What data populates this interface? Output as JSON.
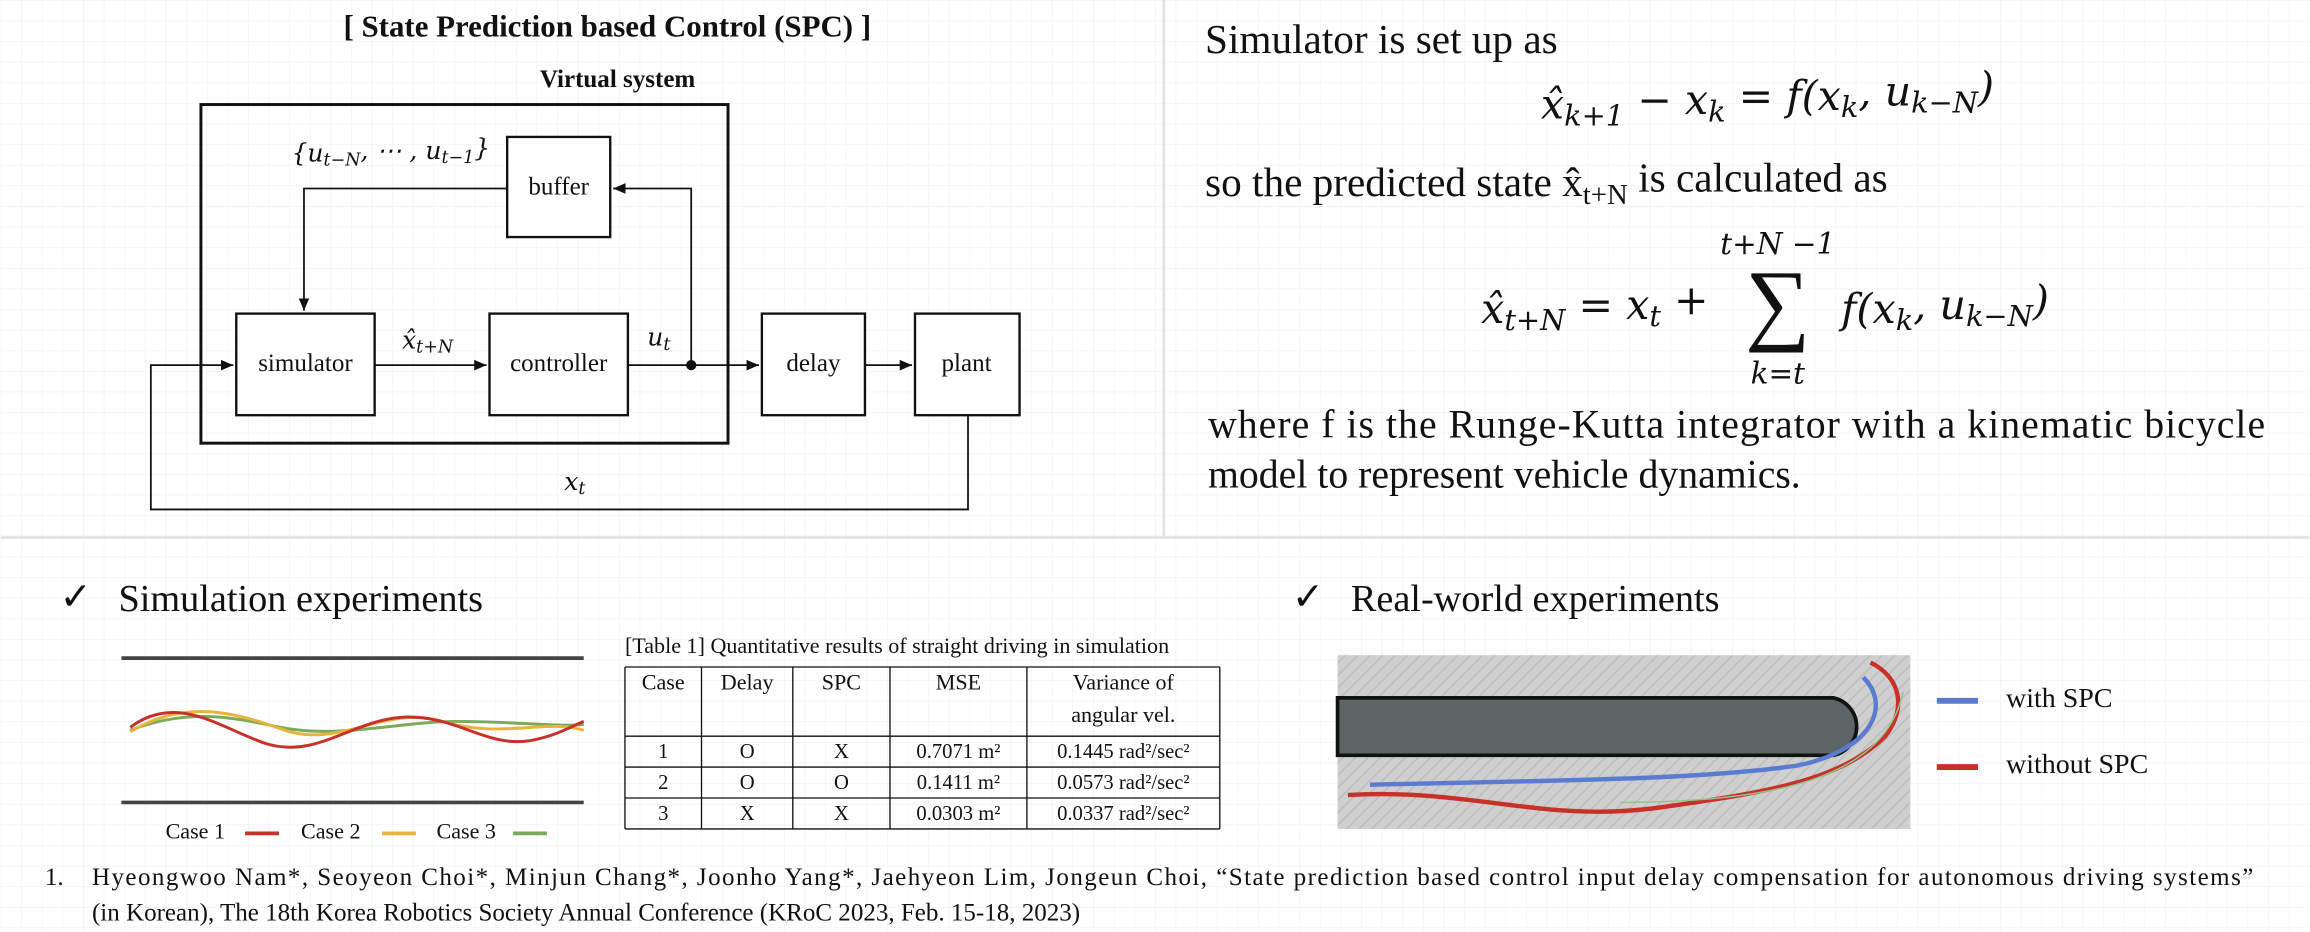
{
  "left_panel": {
    "title": "[ State Prediction based Control (SPC) ]",
    "virtual_system": "Virtual system",
    "buffer_contents": "{u_{t−N}, ⋯ , u_{t−1}}",
    "blocks": [
      "buffer",
      "simulator",
      "controller",
      "delay",
      "plant"
    ],
    "signals": [
      "x̂_{t+N}",
      "u_{t}",
      "x_{t}"
    ]
  },
  "right_panel": {
    "line1": "Simulator is set up as",
    "formula1": "x̂_{k+1} − x_{k} = f(x_{k}, u_{k−N})",
    "line2": "so the predicted state x̂_{t+N} is calculated as",
    "formula2": {
      "lhs": "x̂_{t+N} = x_{t} +",
      "sum": "∑",
      "upper": "t+N −1",
      "lower": "k=t",
      "rhs": "f(x_{k}, u_{k−N})"
    },
    "where_lines": [
      "where f is the Runge-Kutta integrator with a kinematic bicycle",
      "model to represent vehicle dynamics."
    ]
  },
  "simulation": {
    "check": "✓",
    "heading": "Simulation experiments",
    "legend": [
      "Case 1",
      "Case 2",
      "Case 3"
    ]
  },
  "table": {
    "caption": "[Table 1] Quantitative results of straight driving in simulation",
    "header": [
      "Case",
      "Delay",
      "SPC",
      "MSE",
      [
        "Variance of",
        "angular vel."
      ]
    ],
    "rows": [
      [
        "1",
        "O",
        "X",
        "0.7071 m²",
        "0.1445 rad²/sec²"
      ],
      [
        "2",
        "O",
        "O",
        "0.1411 m²",
        "0.0573 rad²/sec²"
      ],
      [
        "3",
        "X",
        "X",
        "0.0303 m²",
        "0.0337 rad²/sec²"
      ]
    ]
  },
  "real_world": {
    "check": "✓",
    "heading": "Real-world experiments",
    "legend": [
      "with SPC",
      "without SPC"
    ]
  },
  "footnote": {
    "number": "1.",
    "lines": [
      "Hyeongwoo Nam*, Seoyeon Choi*, Minjun Chang*, Joonho Yang*, Jaehyeon Lim, Jongeun Choi, “State prediction based control input delay compensation for autonomous driving systems”",
      "(in Korean), The 18th Korea Robotics Society Annual Conference (KRoC 2023, Feb. 15-18, 2023)"
    ]
  }
}
